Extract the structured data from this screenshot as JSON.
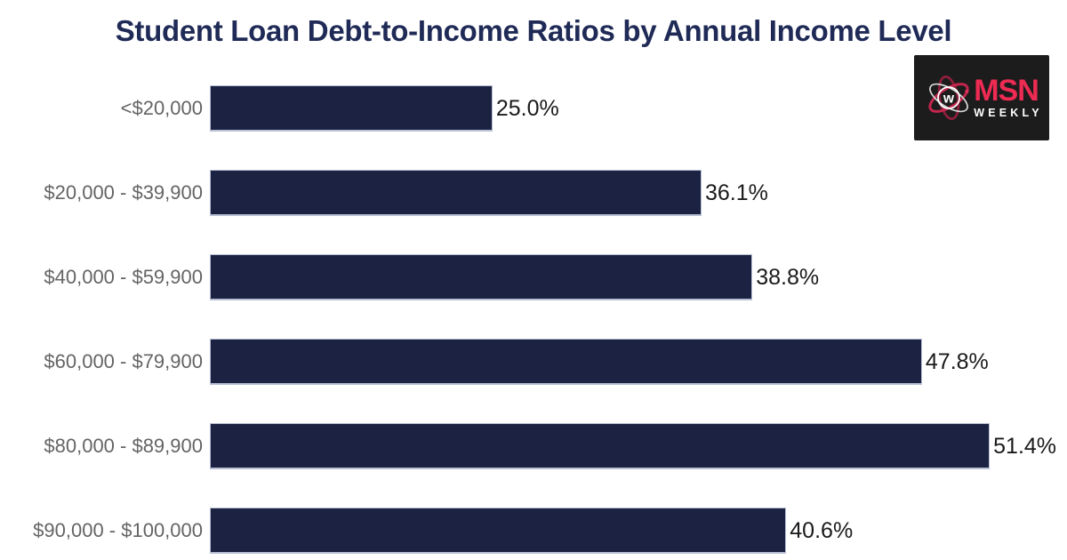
{
  "header": {
    "title": "Student Loan Debt-to-Income Ratios by Annual Income Level",
    "title_color": "#1f2a56"
  },
  "logo": {
    "brand_primary": "MSN",
    "brand_secondary": "WEEKLY",
    "emblem_letter": "w",
    "background": "#1c1c1d",
    "primary_color": "#ee2b53",
    "secondary_color": "#ffffff"
  },
  "chart_data": {
    "type": "bar",
    "orientation": "horizontal",
    "title": "Student Loan Debt-to-Income Ratios by Annual Income Level",
    "categories": [
      "<$20,000",
      "$20,000 - $39,900",
      "$40,000 - $59,900",
      "$60,000 - $79,900",
      "$80,000 - $89,900",
      "$90,000 - $100,000"
    ],
    "values": [
      25.0,
      36.1,
      38.8,
      47.8,
      51.4,
      40.6
    ],
    "value_labels": [
      "25.0%",
      "36.1%",
      "38.8%",
      "47.8%",
      "51.4%",
      "40.6%"
    ],
    "xlabel": "",
    "ylabel": "",
    "xlim": [
      10,
      55.5
    ],
    "grid": false,
    "legend": false,
    "bar_color": "#1c2342",
    "bar_border_color": "#b9c0d4",
    "category_label_color": "#646464",
    "value_label_color": "#1a1a1a"
  }
}
